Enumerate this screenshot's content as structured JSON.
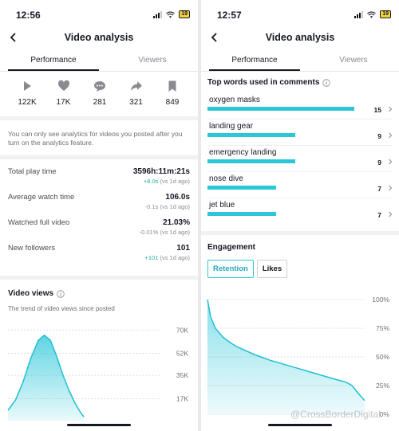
{
  "left": {
    "status_time": "12:56",
    "battery": "19",
    "nav_title": "Video analysis",
    "tabs": [
      "Performance",
      "Viewers"
    ],
    "metrics": [
      {
        "icon": "play-icon",
        "value": "122K"
      },
      {
        "icon": "heart-icon",
        "value": "17K"
      },
      {
        "icon": "comment-icon",
        "value": "281"
      },
      {
        "icon": "share-icon",
        "value": "321"
      },
      {
        "icon": "bookmark-icon",
        "value": "849"
      }
    ],
    "note": "You can only see analytics for videos you posted after you turn on the analytics feature.",
    "stats": [
      {
        "label": "Total play time",
        "value": "3596h:11m:21s",
        "change_value": "+8.0s",
        "change_suffix": " (vs 1d ago)",
        "positive": true
      },
      {
        "label": "Average watch time",
        "value": "106.0s",
        "change_value": "-0.1s",
        "change_suffix": " (vs 1d ago)",
        "positive": false
      },
      {
        "label": "Watched full video",
        "value": "21.03%",
        "change_value": "-0.01%",
        "change_suffix": " (vs 1d ago)",
        "positive": false
      },
      {
        "label": "New followers",
        "value": "101",
        "change_value": "+101",
        "change_suffix": " (vs 1d ago)",
        "positive": true
      }
    ],
    "video_views": {
      "title": "Video views",
      "subtitle": "The trend of video views since posted",
      "ticks": [
        "70K",
        "52K",
        "35K",
        "17K"
      ],
      "tick_values": [
        70,
        52,
        35,
        17
      ],
      "y_max": 80,
      "curve": [
        [
          0,
          8
        ],
        [
          0.05,
          16
        ],
        [
          0.1,
          30
        ],
        [
          0.15,
          48
        ],
        [
          0.2,
          62
        ],
        [
          0.24,
          66
        ],
        [
          0.28,
          62
        ],
        [
          0.32,
          50
        ],
        [
          0.36,
          36
        ],
        [
          0.4,
          24
        ],
        [
          0.44,
          14
        ],
        [
          0.48,
          6
        ],
        [
          0.5,
          3
        ]
      ]
    }
  },
  "right": {
    "status_time": "12:57",
    "battery": "19",
    "nav_title": "Video analysis",
    "tabs": [
      "Performance",
      "Viewers"
    ],
    "top_words_title": "Top words used in comments",
    "words": [
      {
        "word": "oxygen masks",
        "count": 15
      },
      {
        "word": "landing gear",
        "count": 9
      },
      {
        "word": "emergency landing",
        "count": 9
      },
      {
        "word": "nose dive",
        "count": 7
      },
      {
        "word": "jet blue",
        "count": 7
      }
    ],
    "engagement_title": "Engagement",
    "engagement_tabs": [
      "Retention",
      "Likes"
    ],
    "retention": {
      "ticks": [
        "100%",
        "75%",
        "50%",
        "25%",
        "0%"
      ],
      "tick_values": [
        100,
        75,
        50,
        25,
        0
      ],
      "curve": [
        [
          0,
          100
        ],
        [
          0.02,
          85
        ],
        [
          0.05,
          75
        ],
        [
          0.1,
          67
        ],
        [
          0.15,
          62
        ],
        [
          0.2,
          58
        ],
        [
          0.3,
          52
        ],
        [
          0.4,
          47
        ],
        [
          0.5,
          43
        ],
        [
          0.6,
          39
        ],
        [
          0.7,
          35
        ],
        [
          0.8,
          31
        ],
        [
          0.88,
          28
        ],
        [
          0.92,
          25
        ],
        [
          0.96,
          18
        ],
        [
          1.0,
          12
        ]
      ]
    },
    "watermark": "@CrossBorderDigital"
  },
  "colors": {
    "accent": "#2bc7d9",
    "positive": "#20b2a8"
  }
}
